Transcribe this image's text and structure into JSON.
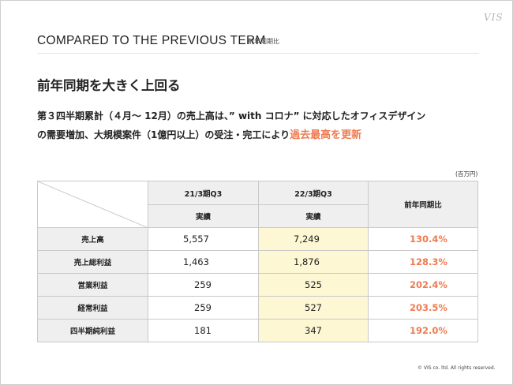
{
  "logo": "VIS",
  "header": {
    "title": "COMPARED TO THE PREVIOUS TERM",
    "subtitle": "前年同期比"
  },
  "headline": "前年同期を大きく上回る",
  "body": {
    "line1": "第３四半期累計（４月～ 12月）の売上高は、” with コロナ” に対応したオフィスデザイン",
    "line2_prefix": "の需要増加、大規模案件（1億円以上）の受注・完工により",
    "line2_highlight": "過去最高を更新"
  },
  "unit_label": "(百万円)",
  "table": {
    "col_prev": "21/3期Q3",
    "col_curr": "22/3期Q3",
    "col_ratio": "前年同期比",
    "sub_prev": "実績",
    "sub_curr": "実績",
    "rows": [
      {
        "label": "売上高",
        "prev": "5,557",
        "curr": "7,249",
        "ratio": "130.4%"
      },
      {
        "label": "売上総利益",
        "prev": "1,463",
        "curr": "1,876",
        "ratio": "128.3%"
      },
      {
        "label": "営業利益",
        "prev": "259",
        "curr": "525",
        "ratio": "202.4%"
      },
      {
        "label": "経常利益",
        "prev": "259",
        "curr": "527",
        "ratio": "203.5%"
      },
      {
        "label": "四半期純利益",
        "prev": "181",
        "curr": "347",
        "ratio": "192.0%"
      }
    ]
  },
  "footer": "© VIS co. ltd. All rights reserved.",
  "colors": {
    "accent": "#ef7b50",
    "highlight_cell": "#fdf7d3",
    "header_cell": "#efefef"
  }
}
